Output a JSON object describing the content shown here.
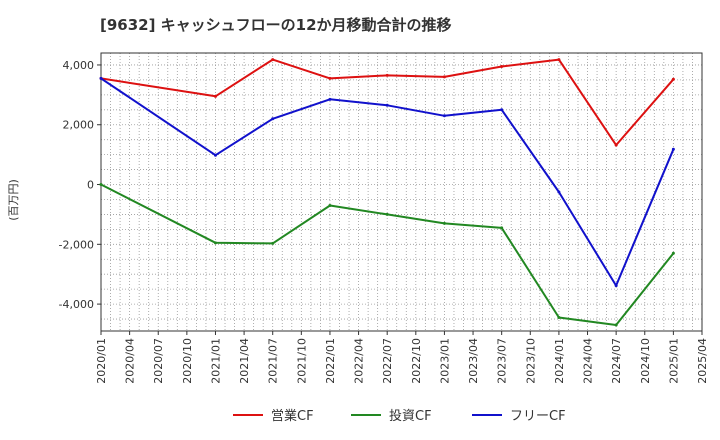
{
  "chart_data": {
    "type": "line",
    "title": "[9632]  キャッシュフローの12か月移動合計の推移",
    "ylabel": "(百万円)",
    "xlabel": "",
    "ylim": [
      -4900,
      4400
    ],
    "yticks": [
      4000,
      2000,
      0,
      -2000,
      -4000
    ],
    "ytick_labels": [
      "4,000",
      "2,000",
      "0",
      "-2,000",
      "-4,000"
    ],
    "xticks": [
      "2020/01",
      "2020/04",
      "2020/07",
      "2020/10",
      "2021/01",
      "2021/04",
      "2021/07",
      "2021/10",
      "2022/01",
      "2022/04",
      "2022/07",
      "2022/10",
      "2023/01",
      "2023/04",
      "2023/07",
      "2023/10",
      "2024/01",
      "2024/04",
      "2024/07",
      "2024/10",
      "2025/01",
      "2025/04"
    ],
    "grid": true,
    "legend_position": "bottom",
    "series": [
      {
        "name": "営業CF",
        "color": "#dd1111",
        "x": [
          "2020/01",
          "2021/01",
          "2021/07",
          "2022/01",
          "2022/07",
          "2023/01",
          "2023/07",
          "2024/01",
          "2024/07",
          "2025/01"
        ],
        "values": [
          3550,
          2950,
          4180,
          3550,
          3650,
          3600,
          3950,
          4180,
          1320,
          3520
        ]
      },
      {
        "name": "投資CF",
        "color": "#228822",
        "x": [
          "2020/01",
          "2021/01",
          "2021/07",
          "2022/01",
          "2022/07",
          "2023/01",
          "2023/07",
          "2024/01",
          "2024/07",
          "2025/01"
        ],
        "values": [
          0,
          -1950,
          -1970,
          -700,
          -1000,
          -1300,
          -1450,
          -4450,
          -4700,
          -2300
        ]
      },
      {
        "name": "フリーCF",
        "color": "#1111cc",
        "x": [
          "2020/01",
          "2021/01",
          "2021/07",
          "2022/01",
          "2022/07",
          "2023/01",
          "2023/07",
          "2024/01",
          "2024/07",
          "2025/01"
        ],
        "values": [
          3550,
          980,
          2200,
          2850,
          2650,
          2300,
          2500,
          -250,
          -3380,
          1180
        ]
      }
    ]
  }
}
